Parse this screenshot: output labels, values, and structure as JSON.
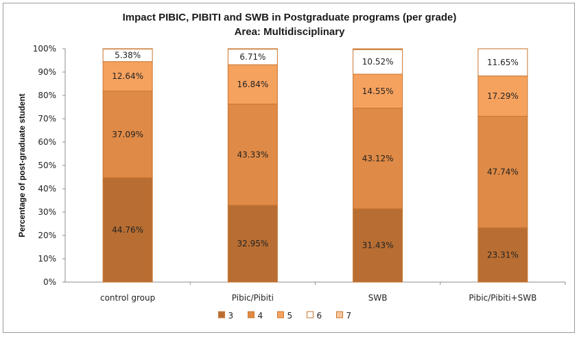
{
  "chart_data": {
    "type": "bar",
    "stacked": true,
    "percent": true,
    "title": "Impact PIBIC, PIBITI and SWB in Postgraduate programs (per grade)",
    "subtitle": "Area: Multidisciplinary",
    "ylabel": "Percentage of post-graduate student",
    "xlabel": "",
    "ylim": [
      0,
      100
    ],
    "yticks": [
      "0%",
      "10%",
      "20%",
      "30%",
      "40%",
      "50%",
      "60%",
      "70%",
      "80%",
      "90%",
      "100%"
    ],
    "categories": [
      "control group",
      "Pibic/Pibiti",
      "SWB",
      "Pibic/Pibiti+SWB"
    ],
    "legend_position": "bottom",
    "series": [
      {
        "name": "3",
        "color": "#b86e33",
        "values": [
          44.76,
          32.95,
          31.43,
          23.31
        ],
        "labels": [
          "44.76%",
          "32.95%",
          "31.43%",
          "23.31%"
        ]
      },
      {
        "name": "4",
        "color": "#df8a46",
        "values": [
          37.09,
          43.33,
          43.12,
          47.74
        ],
        "labels": [
          "37.09%",
          "43.33%",
          "43.12%",
          "47.74%"
        ]
      },
      {
        "name": "5",
        "color": "#f6a25f",
        "values": [
          12.64,
          16.84,
          14.55,
          17.29
        ],
        "labels": [
          "12.64%",
          "16.84%",
          "14.55%",
          "17.29%"
        ]
      },
      {
        "name": "6",
        "color": "#ffffff",
        "values": [
          5.38,
          6.71,
          10.52,
          11.65
        ],
        "labels": [
          "5.38%",
          "6.71%",
          "10.52%",
          "11.65%"
        ]
      },
      {
        "name": "7",
        "color": "#f8c59c",
        "values": [
          0.13,
          0.17,
          0.38,
          0.01
        ],
        "labels": [
          "",
          "",
          "",
          ""
        ]
      }
    ],
    "bar_stroke": "#c8762f"
  }
}
